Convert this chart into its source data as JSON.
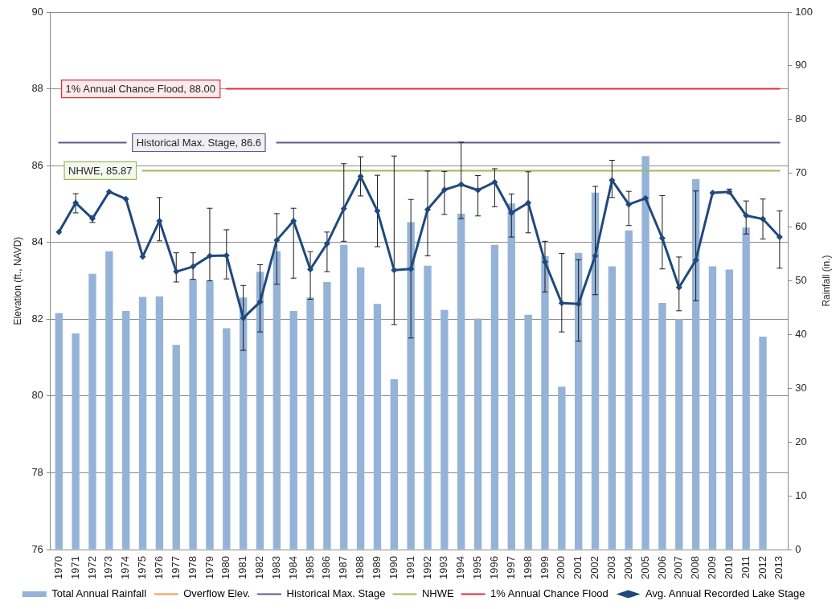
{
  "chart_data": {
    "type": "bar",
    "categories": [
      "1970",
      "1971",
      "1972",
      "1973",
      "1974",
      "1975",
      "1976",
      "1977",
      "1978",
      "1979",
      "1980",
      "1981",
      "1982",
      "1983",
      "1984",
      "1985",
      "1986",
      "1987",
      "1988",
      "1989",
      "1990",
      "1991",
      "1992",
      "1993",
      "1994",
      "1995",
      "1996",
      "1997",
      "1998",
      "1999",
      "2000",
      "2001",
      "2002",
      "2003",
      "2004",
      "2005",
      "2006",
      "2007",
      "2008",
      "2009",
      "2010",
      "2011",
      "2012",
      "2013"
    ],
    "series": [
      {
        "name": "Total Annual Rainfall",
        "axis": "y2",
        "color": "#95b3d7",
        "values": [
          44.0,
          40.2,
          51.3,
          55.5,
          44.4,
          47.0,
          47.1,
          38.1,
          50.3,
          50.0,
          41.2,
          46.9,
          51.7,
          55.5,
          44.4,
          46.9,
          49.8,
          56.7,
          52.5,
          45.7,
          31.7,
          60.9,
          52.8,
          44.6,
          62.5,
          43.0,
          56.7,
          64.4,
          43.7,
          54.6,
          30.3,
          55.2,
          66.4,
          52.7,
          59.4,
          73.2,
          45.9,
          42.9,
          68.9,
          52.7,
          52.1,
          59.9,
          39.6,
          null
        ]
      },
      {
        "name": "Overflow Elev.",
        "type": "line",
        "color": "#f79646",
        "marker": "none",
        "values": [
          null,
          null,
          null,
          null,
          null,
          null,
          null,
          null,
          null,
          null,
          null,
          null,
          null,
          null,
          null,
          null,
          null,
          null,
          null,
          null,
          null,
          null,
          null,
          null,
          null,
          null,
          null,
          null,
          null,
          null,
          null,
          null,
          null,
          null,
          null,
          null,
          null,
          null,
          null,
          null,
          null,
          null,
          null,
          null
        ]
      },
      {
        "name": "Historical Max. Stage",
        "type": "line",
        "color": "#5e5a8a",
        "marker": "none",
        "values": [
          86.6,
          86.6,
          86.6,
          86.6,
          86.6,
          null,
          null,
          null,
          null,
          null,
          null,
          null,
          null,
          86.6,
          86.6,
          86.6,
          86.6,
          86.6,
          86.6,
          86.6,
          86.6,
          86.6,
          86.6,
          86.6,
          86.6,
          86.6,
          86.6,
          86.6,
          86.6,
          86.6,
          86.6,
          86.6,
          86.6,
          86.6,
          86.6,
          86.6,
          86.6,
          86.6,
          86.6,
          86.6,
          86.6,
          86.6,
          86.6,
          86.6
        ]
      },
      {
        "name": "NHWE",
        "type": "line",
        "color": "#9bbb59",
        "marker": "none",
        "values": [
          null,
          null,
          null,
          null,
          null,
          85.87,
          85.87,
          85.87,
          85.87,
          85.87,
          85.87,
          85.87,
          85.87,
          85.87,
          85.87,
          85.87,
          85.87,
          85.87,
          85.87,
          85.87,
          85.87,
          85.87,
          85.87,
          85.87,
          85.87,
          85.87,
          85.87,
          85.87,
          85.87,
          85.87,
          85.87,
          85.87,
          85.87,
          85.87,
          85.87,
          85.87,
          85.87,
          85.87,
          85.87,
          85.87,
          85.87,
          85.87,
          85.87,
          85.87
        ]
      },
      {
        "name": "1% Annual Chance Flood",
        "type": "line",
        "color": "#d9303c",
        "marker": "none",
        "values": [
          null,
          null,
          null,
          null,
          null,
          null,
          null,
          null,
          null,
          null,
          88,
          88,
          88,
          88,
          88,
          88,
          88,
          88,
          88,
          88,
          88,
          88,
          88,
          88,
          88,
          88,
          88,
          88,
          88,
          88,
          88,
          88,
          88,
          88,
          88,
          88,
          88,
          88,
          88,
          88,
          88,
          88,
          88,
          88
        ]
      },
      {
        "name": "Avg. Annual Recorded Lake Stage",
        "type": "line",
        "color": "#1f497d",
        "marker": "diamond",
        "values": [
          84.27,
          85.03,
          84.62,
          85.32,
          85.13,
          83.63,
          84.56,
          83.24,
          83.37,
          83.65,
          83.66,
          82.03,
          82.45,
          84.06,
          84.56,
          83.3,
          83.97,
          84.88,
          85.72,
          84.82,
          83.28,
          83.31,
          84.86,
          85.37,
          85.51,
          85.36,
          85.57,
          84.77,
          85.03,
          83.49,
          82.42,
          82.4,
          83.65,
          85.62,
          84.99,
          85.15,
          84.11,
          82.83,
          83.54,
          85.29,
          85.32,
          84.7,
          84.61,
          84.14
        ],
        "errors": [
          null,
          [
            84.77,
            85.27
          ],
          [
            84.52,
            84.69
          ],
          null,
          null,
          null,
          [
            84.04,
            85.17
          ],
          [
            82.97,
            83.73
          ],
          [
            83.04,
            83.73
          ],
          [
            83.0,
            84.89
          ],
          [
            83.05,
            84.33
          ],
          [
            81.19,
            82.88
          ],
          [
            81.67,
            83.42
          ],
          [
            82.91,
            84.75
          ],
          [
            83.07,
            84.89
          ],
          [
            82.52,
            83.76
          ],
          [
            83.24,
            84.27
          ],
          [
            84.03,
            86.05
          ],
          [
            85.21,
            86.23
          ],
          [
            83.89,
            85.75
          ],
          [
            81.86,
            86.25
          ],
          [
            81.51,
            85.12
          ],
          [
            83.65,
            85.86
          ],
          [
            84.73,
            85.85
          ],
          [
            84.62,
            86.61
          ],
          [
            84.69,
            85.74
          ],
          [
            84.93,
            85.92
          ],
          [
            84.14,
            85.26
          ],
          [
            84.25,
            85.84
          ],
          [
            82.71,
            84.03
          ],
          [
            81.67,
            83.71
          ],
          [
            81.43,
            83.55
          ],
          [
            82.64,
            85.46
          ],
          [
            85.17,
            86.14
          ],
          [
            84.44,
            85.33
          ],
          null,
          [
            83.31,
            85.22
          ],
          [
            82.22,
            83.62
          ],
          [
            82.48,
            85.34
          ],
          null,
          [
            85.27,
            85.39
          ],
          [
            84.22,
            85.08
          ],
          [
            84.09,
            85.13
          ],
          [
            83.33,
            84.82
          ]
        ]
      }
    ],
    "ylabel": "Elevation (ft., NAVD)",
    "y2label": "Rainfall (in.)",
    "ylim": [
      76,
      90
    ],
    "yticks": [
      76,
      78,
      80,
      82,
      84,
      86,
      88,
      90
    ],
    "y2lim": [
      0,
      100
    ],
    "y2ticks": [
      0,
      10,
      20,
      30,
      40,
      50,
      60,
      70,
      80,
      90,
      100
    ],
    "grid": "y",
    "legend": "bottom",
    "annotations": [
      {
        "text": "1% Annual Chance Flood, 88.00",
        "x": "1980",
        "y": 88
      },
      {
        "text": "Historical Max. Stage, 86.6",
        "x": "1974",
        "y": 86.6
      },
      {
        "text": "NHWE, 85.87",
        "x": "1975",
        "y": 85.87
      }
    ]
  }
}
